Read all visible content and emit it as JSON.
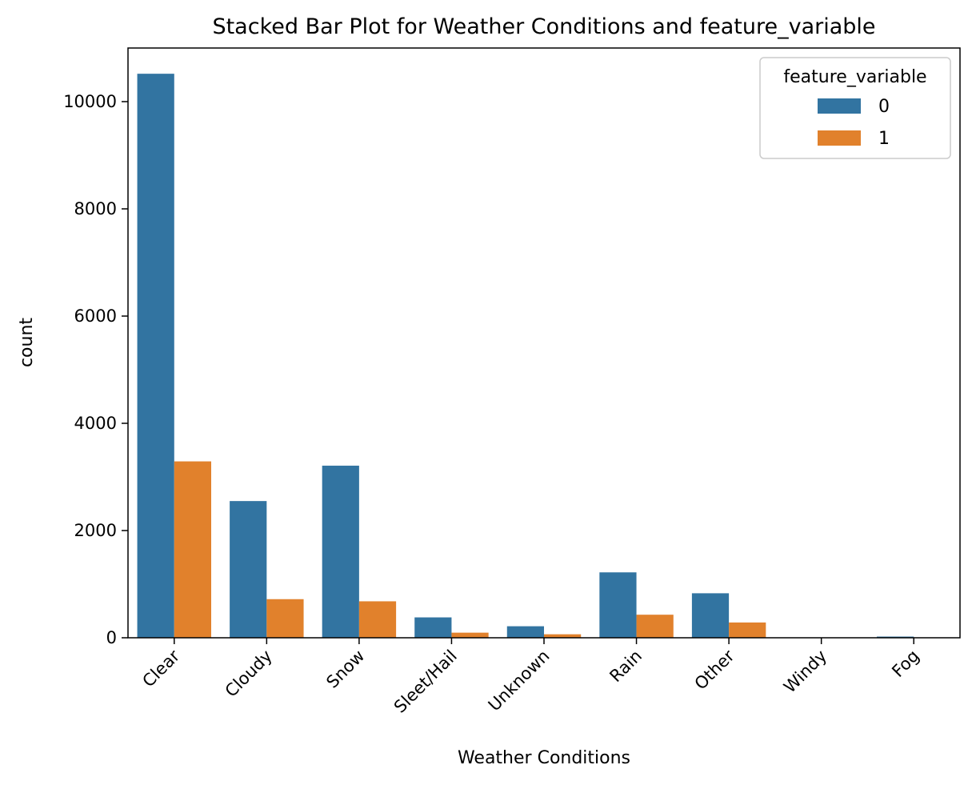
{
  "chart_data": {
    "type": "bar",
    "title": "Stacked Bar Plot for Weather Conditions and feature_variable",
    "xlabel": "Weather Conditions",
    "ylabel": "count",
    "ylim": [
      0,
      11000
    ],
    "yticks": [
      0,
      2000,
      4000,
      6000,
      8000,
      10000
    ],
    "categories": [
      "Clear",
      "Cloudy",
      "Snow",
      "Sleet/Hail",
      "Unknown",
      "Rain",
      "Other",
      "Windy",
      "Fog"
    ],
    "series": [
      {
        "name": "0",
        "color": "#3274a1",
        "values": [
          10520,
          2550,
          3210,
          380,
          215,
          1220,
          830,
          4,
          22
        ]
      },
      {
        "name": "1",
        "color": "#e1812c",
        "values": [
          3290,
          720,
          680,
          95,
          65,
          430,
          285,
          2,
          5
        ]
      }
    ],
    "legend": {
      "title": "feature_variable",
      "placement": "top-right"
    },
    "grid": false
  }
}
